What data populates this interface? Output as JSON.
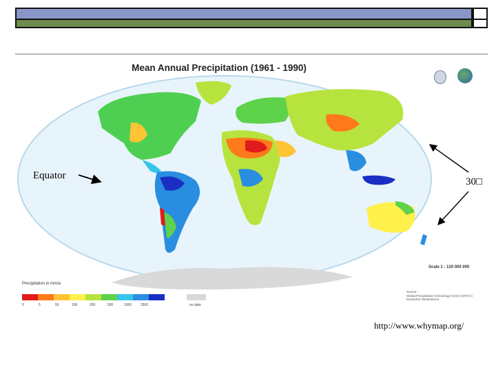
{
  "slide": {
    "equator_label": "Equator",
    "thirty_label": "30",
    "thirty_glyph": "□",
    "source_url": "http://www.whymap.org/"
  },
  "map": {
    "title": "Mean Annual Precipitation (1961 - 1990)",
    "legend_title": "Precipitation in mm/a",
    "legend_ticks": [
      "0",
      "5",
      "50",
      "100",
      "250",
      "500",
      "1000",
      "2500"
    ],
    "nodata_label": "no data",
    "scale_label": "Scale 1 : 120 000 000",
    "source_lines": [
      "Source:",
      "Global Precipitation Climatology Centre (GPCC)",
      "Deutscher Wetterdienst"
    ],
    "colors": {
      "legend": [
        "#e11c1c",
        "#ff7a1a",
        "#ffc436",
        "#fff04a",
        "#b7e33e",
        "#5ed24a",
        "#34c5e8",
        "#2a8ee0",
        "#1b2ec4"
      ],
      "nodata": "#d9d9d9",
      "ocean": "#e8f4fb",
      "map_border": "#b9d8ec"
    }
  }
}
